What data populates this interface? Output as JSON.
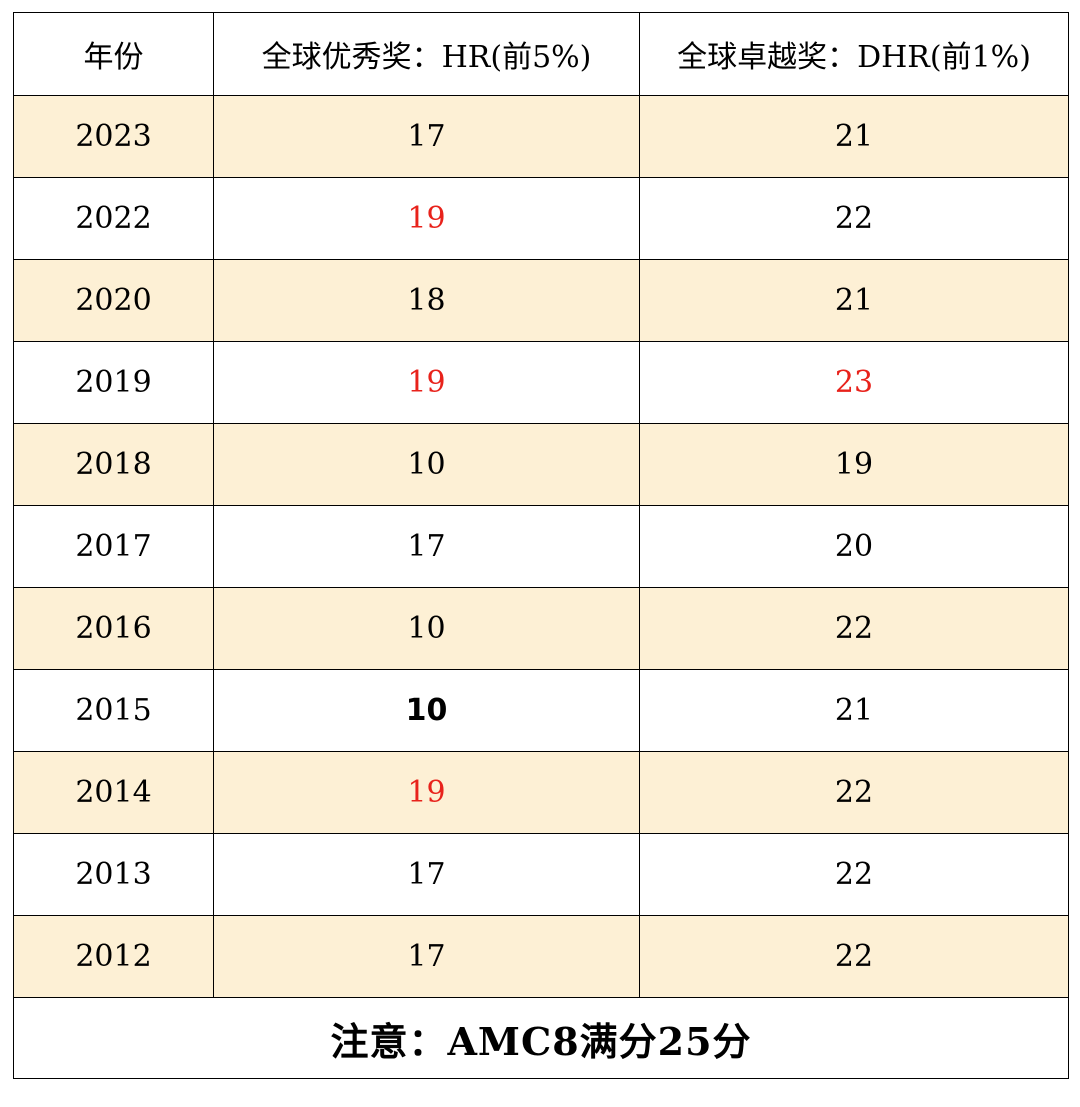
{
  "table": {
    "headers": {
      "year": "年份",
      "hr": "全球优秀奖：HR(前5%)",
      "dhr": "全球卓越奖：DHR(前1%)"
    },
    "rows": [
      {
        "year": "2023",
        "hr": "17",
        "dhr": "21",
        "shaded": true,
        "hr_style": "normal",
        "dhr_style": "normal"
      },
      {
        "year": "2022",
        "hr": "19",
        "dhr": "22",
        "shaded": false,
        "hr_style": "red",
        "dhr_style": "normal"
      },
      {
        "year": "2020",
        "hr": "18",
        "dhr": "21",
        "shaded": true,
        "hr_style": "normal",
        "dhr_style": "normal"
      },
      {
        "year": "2019",
        "hr": "19",
        "dhr": "23",
        "shaded": false,
        "hr_style": "red",
        "dhr_style": "red"
      },
      {
        "year": "2018",
        "hr": "10",
        "dhr": "19",
        "shaded": true,
        "hr_style": "normal",
        "dhr_style": "normal"
      },
      {
        "year": "2017",
        "hr": "17",
        "dhr": "20",
        "shaded": false,
        "hr_style": "normal",
        "dhr_style": "normal"
      },
      {
        "year": "2016",
        "hr": "10",
        "dhr": "22",
        "shaded": true,
        "hr_style": "normal",
        "dhr_style": "normal"
      },
      {
        "year": "2015",
        "hr": "10",
        "dhr": "21",
        "shaded": false,
        "hr_style": "bold",
        "dhr_style": "normal"
      },
      {
        "year": "2014",
        "hr": "19",
        "dhr": "22",
        "shaded": true,
        "hr_style": "red",
        "dhr_style": "normal"
      },
      {
        "year": "2013",
        "hr": "17",
        "dhr": "22",
        "shaded": false,
        "hr_style": "normal",
        "dhr_style": "normal"
      },
      {
        "year": "2012",
        "hr": "17",
        "dhr": "22",
        "shaded": true,
        "hr_style": "normal",
        "dhr_style": "normal"
      }
    ],
    "note": "注意：AMC8满分25分"
  },
  "colors": {
    "shaded_row": "#fdf0d5",
    "highlight_red": "#e8221b",
    "border": "#000000"
  }
}
